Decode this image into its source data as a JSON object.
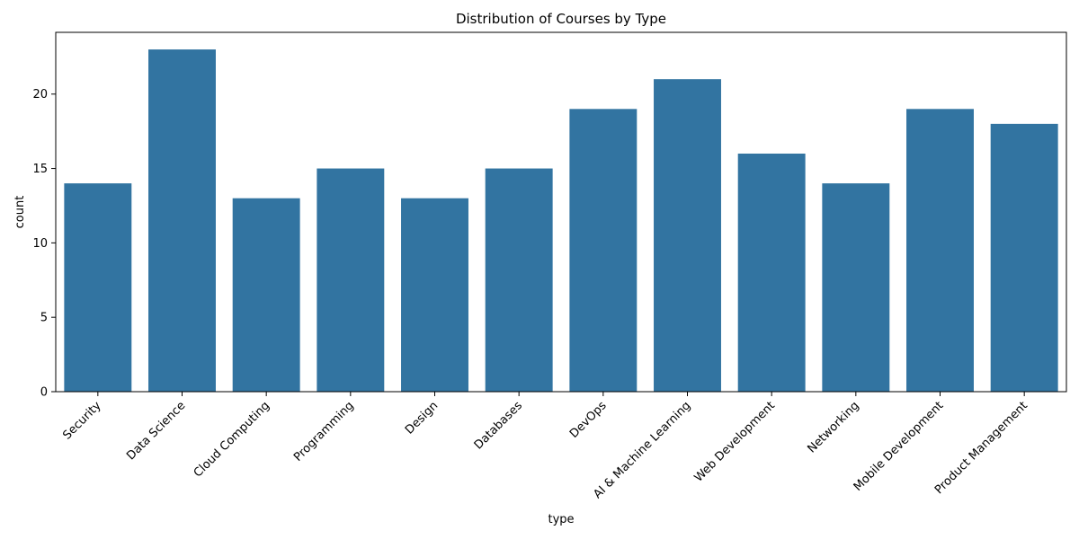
{
  "chart_data": {
    "type": "bar",
    "title": "Distribution of Courses by Type",
    "xlabel": "type",
    "ylabel": "count",
    "categories": [
      "Security",
      "Data Science",
      "Cloud Computing",
      "Programming",
      "Design",
      "Databases",
      "DevOps",
      "AI & Machine Learning",
      "Web Development",
      "Networking",
      "Mobile Development",
      "Product Management"
    ],
    "values": [
      14,
      23,
      13,
      15,
      13,
      15,
      19,
      21,
      16,
      14,
      19,
      18
    ],
    "ylim": [
      0,
      24.15
    ],
    "yticks": [
      0,
      5,
      10,
      15,
      20
    ],
    "bar_color": "#3274a1",
    "grid": false,
    "legend": "none"
  }
}
